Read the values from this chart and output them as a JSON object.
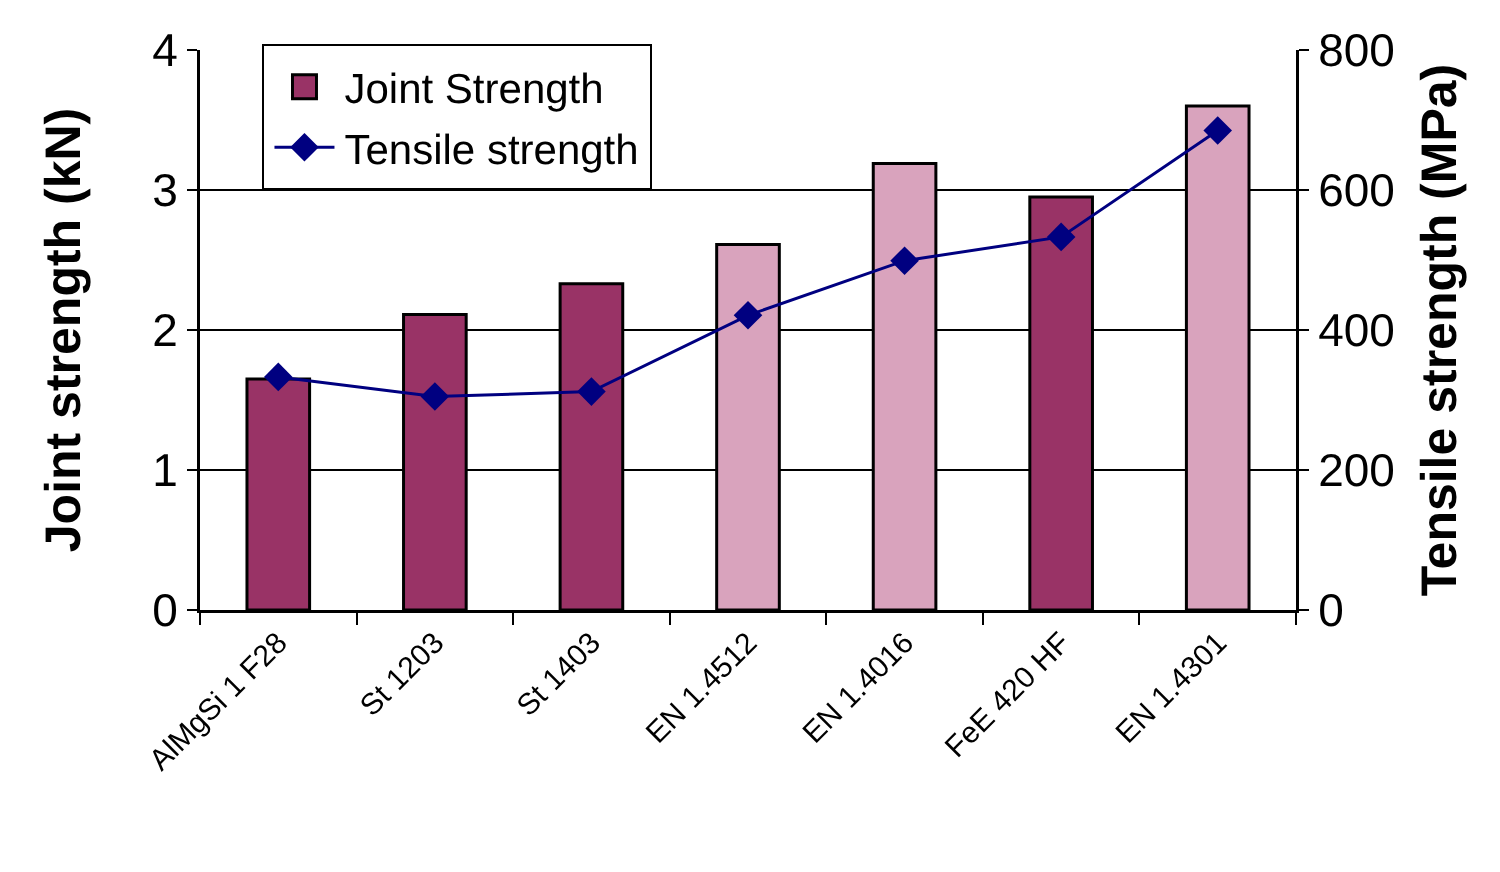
{
  "chart_data": {
    "type": "bar",
    "categories": [
      "AlMgSi 1 F28",
      "St 1203",
      "St 1403",
      "EN 1.4512",
      "EN 1.4016",
      "FeE 420 HF",
      "EN 1.4301"
    ],
    "ylabel": "Joint strength (kN)",
    "y2label": "Tensile strength (MPa)",
    "ylim": [
      0,
      4
    ],
    "yticks": [
      0,
      1,
      2,
      3,
      4
    ],
    "y2lim": [
      0,
      800
    ],
    "y2ticks": [
      0,
      200,
      400,
      600,
      800
    ],
    "series": [
      {
        "name": "Joint Strength",
        "colors": [
          "#993366",
          "#993366",
          "#993366",
          "#d9a3bd",
          "#d9a3bd",
          "#993366",
          "#d9a3bd"
        ],
        "values": [
          1.65,
          2.11,
          2.33,
          2.61,
          3.19,
          2.95,
          3.6
        ]
      },
      {
        "name": "Tensile strength",
        "type": "line",
        "axis": "y2",
        "color": "#000080",
        "values": [
          333,
          305,
          312,
          421,
          499,
          533,
          685
        ]
      }
    ],
    "marker": "diamond",
    "grid": "y",
    "legend": "top left"
  }
}
